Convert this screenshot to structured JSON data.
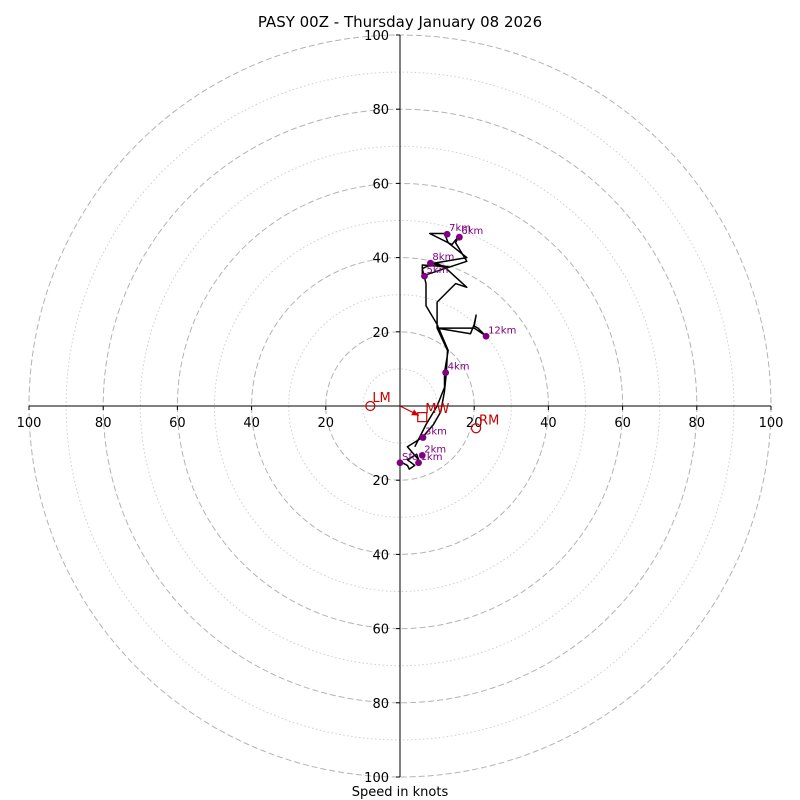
{
  "chart_data": {
    "type": "hodograph",
    "title": "PASY 00Z - Thursday January 08 2026",
    "xlabel": "Speed in knots",
    "range": [
      -100,
      100
    ],
    "major_rings": [
      20,
      40,
      60,
      80,
      100
    ],
    "minor_rings": [
      10,
      30,
      50,
      70,
      90
    ],
    "x_tick_labels": [
      "100",
      "80",
      "60",
      "40",
      "20",
      "20",
      "40",
      "60",
      "80",
      "100"
    ],
    "y_tick_labels": [
      "100",
      "80",
      "60",
      "40",
      "20",
      "20",
      "40",
      "60",
      "80",
      "100"
    ],
    "x_tick_values": [
      -100,
      -80,
      -60,
      -40,
      -20,
      20,
      40,
      60,
      80,
      100
    ],
    "y_tick_values": [
      100,
      80,
      60,
      40,
      20,
      -20,
      -40,
      -60,
      -80,
      -100
    ],
    "trace": [
      [
        0,
        -15
      ],
      [
        2,
        -16
      ],
      [
        2.5,
        -17
      ],
      [
        4,
        -16
      ],
      [
        2,
        -14.5
      ],
      [
        4.5,
        -13
      ],
      [
        5,
        -14.5
      ],
      [
        2,
        -11
      ],
      [
        6,
        -8.5
      ],
      [
        9,
        -5
      ],
      [
        11,
        -1.5
      ],
      [
        12,
        4
      ],
      [
        12.5,
        9
      ],
      [
        12.8,
        15
      ],
      [
        10,
        21
      ],
      [
        19,
        19.5
      ],
      [
        20,
        22
      ],
      [
        20.5,
        24.5
      ],
      [
        20,
        21.5
      ],
      [
        21,
        21
      ],
      [
        23,
        19
      ],
      [
        20,
        21
      ],
      [
        10,
        21
      ],
      [
        10,
        28
      ],
      [
        13,
        31
      ],
      [
        15,
        33
      ],
      [
        18,
        32
      ],
      [
        12.5,
        37
      ],
      [
        10,
        38.5
      ],
      [
        8,
        38.5
      ],
      [
        13,
        37.5
      ],
      [
        6,
        38
      ],
      [
        6,
        35
      ],
      [
        18,
        39
      ],
      [
        15,
        44
      ],
      [
        16,
        46
      ],
      [
        14,
        43.5
      ],
      [
        8,
        46.5
      ],
      [
        12,
        46.5
      ],
      [
        13,
        44
      ],
      [
        18,
        40
      ],
      [
        9,
        38.5
      ],
      [
        6,
        37
      ],
      [
        7,
        33
      ],
      [
        7,
        27
      ],
      [
        10,
        22
      ],
      [
        13,
        15
      ],
      [
        12,
        9
      ],
      [
        12,
        5
      ],
      [
        10,
        0
      ],
      [
        7,
        -5
      ],
      [
        4,
        -11
      ]
    ],
    "height_markers": [
      {
        "label": "Sfc",
        "u": 0,
        "v": -15.3
      },
      {
        "label": "1km",
        "u": 5,
        "v": -15.3
      },
      {
        "label": "2km",
        "u": 6,
        "v": -13.3
      },
      {
        "label": "3km",
        "u": 6.2,
        "v": -8.5
      },
      {
        "label": "4km",
        "u": 12.3,
        "v": 9
      },
      {
        "label": "5km",
        "u": 6.6,
        "v": 35
      },
      {
        "label": "6km",
        "u": 16,
        "v": 45.5
      },
      {
        "label": "7km",
        "u": 12.7,
        "v": 46.3
      },
      {
        "label": "8km",
        "u": 8.2,
        "v": 38.5
      },
      {
        "label": "12km",
        "u": 23.2,
        "v": 18.8
      }
    ],
    "motion": {
      "LM": {
        "label": "LM",
        "u": -8,
        "v": 0
      },
      "RM": {
        "label": "RM",
        "u": 20.5,
        "v": -6
      },
      "MW": {
        "label": "MW",
        "u": 6,
        "v": -3
      }
    }
  },
  "colors": {
    "grid": "#b3b3b3",
    "trace": "#000000",
    "markers": "#800080",
    "motion": "#cc0000"
  }
}
